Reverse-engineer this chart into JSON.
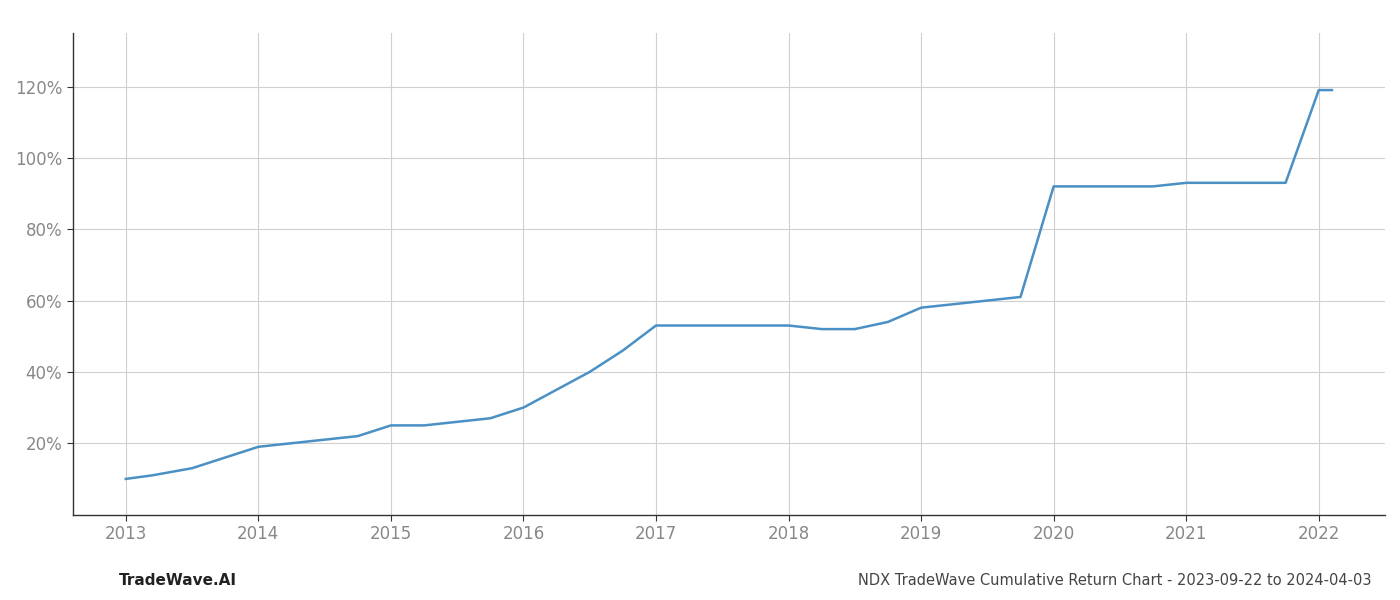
{
  "title": "NDX TradeWave Cumulative Return Chart - 2023-09-22 to 2024-04-03",
  "footer_left": "TradeWave.AI",
  "line_color": "#4a90c4",
  "line_width": 1.8,
  "background_color": "#ffffff",
  "grid_color": "#d0d0d0",
  "x_years": [
    2013.0,
    2013.2,
    2013.5,
    2013.75,
    2014.0,
    2014.25,
    2014.5,
    2014.75,
    2015.0,
    2015.25,
    2015.5,
    2015.75,
    2016.0,
    2016.25,
    2016.5,
    2016.75,
    2017.0,
    2017.25,
    2017.5,
    2017.75,
    2018.0,
    2018.25,
    2018.5,
    2018.75,
    2019.0,
    2019.25,
    2019.5,
    2019.75,
    2020.0,
    2020.25,
    2020.5,
    2020.75,
    2021.0,
    2021.25,
    2021.5,
    2021.75,
    2022.0,
    2022.1
  ],
  "y_values": [
    10,
    11,
    13,
    16,
    19,
    20,
    21,
    22,
    25,
    25,
    26,
    27,
    30,
    35,
    40,
    46,
    53,
    53,
    53,
    53,
    53,
    52,
    52,
    54,
    58,
    59,
    60,
    61,
    92,
    92,
    92,
    92,
    93,
    93,
    93,
    93,
    119,
    119
  ],
  "xlim": [
    2012.6,
    2022.5
  ],
  "ylim": [
    0,
    135
  ],
  "yticks": [
    20,
    40,
    60,
    80,
    100,
    120
  ],
  "xticks": [
    2013,
    2014,
    2015,
    2016,
    2017,
    2018,
    2019,
    2020,
    2021,
    2022
  ],
  "title_fontsize": 10.5,
  "footer_fontsize": 11,
  "tick_fontsize": 12
}
